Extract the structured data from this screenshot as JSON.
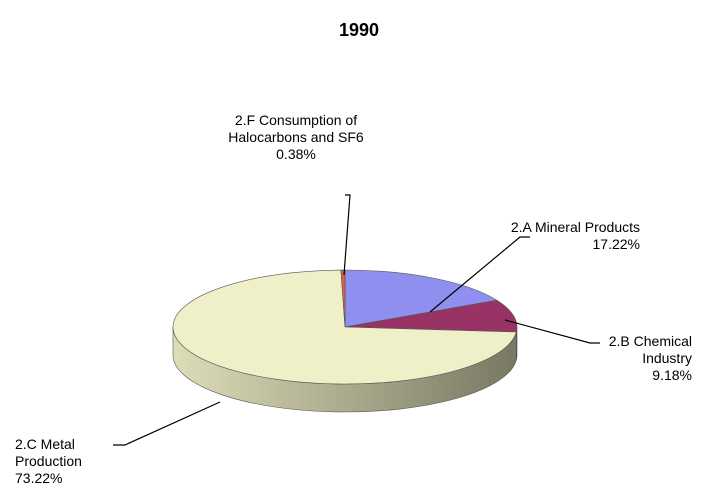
{
  "chart_data": {
    "type": "pie",
    "title": "1990",
    "categories": [
      "2.A Mineral Products",
      "2.B Chemical Industry",
      "2.C Metal Production",
      "2.F Consumption of Halocarbons and SF6"
    ],
    "values": [
      17.22,
      9.18,
      73.22,
      0.38
    ],
    "value_labels": [
      "17.22%",
      "9.18%",
      "73.22%",
      "0.38%"
    ],
    "colors": [
      "#8f8fef",
      "#993366",
      "#f0f0c8",
      "#e06040"
    ]
  }
}
